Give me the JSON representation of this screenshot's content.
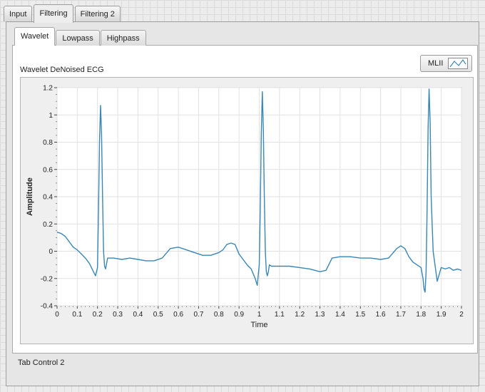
{
  "outer_tabs": [
    "Input",
    "Filtering",
    "Filtering 2"
  ],
  "active_outer_tab": "Filtering",
  "inner_tabs": [
    "Wavelet",
    "Lowpass",
    "Highpass"
  ],
  "active_inner_tab": "Wavelet",
  "graph": {
    "label": "Wavelet DeNoised ECG",
    "legend_label": "MLII",
    "line_color": "#3a86b4"
  },
  "tab_control_label": "Tab Control 2",
  "chart_data": {
    "type": "line",
    "xlabel": "Time",
    "ylabel": "Amplitude",
    "xlim": [
      0,
      2
    ],
    "ylim": [
      -0.4,
      1.2
    ],
    "xticks": [
      "0",
      "0.1",
      "0.2",
      "0.3",
      "0.4",
      "0.5",
      "0.6",
      "0.7",
      "0.8",
      "0.9",
      "1",
      "1.1",
      "1.2",
      "1.3",
      "1.4",
      "1.5",
      "1.6",
      "1.7",
      "1.8",
      "1.9",
      "2"
    ],
    "yticks": [
      "-0.4",
      "-0.2",
      "0",
      "0.2",
      "0.4",
      "0.6",
      "0.8",
      "1",
      "1.2"
    ],
    "grid": true,
    "series": [
      {
        "name": "MLII",
        "x": [
          0,
          0.02,
          0.04,
          0.06,
          0.08,
          0.1,
          0.12,
          0.14,
          0.16,
          0.18,
          0.19,
          0.2,
          0.205,
          0.21,
          0.215,
          0.22,
          0.225,
          0.23,
          0.235,
          0.24,
          0.25,
          0.28,
          0.32,
          0.36,
          0.4,
          0.44,
          0.48,
          0.52,
          0.56,
          0.6,
          0.64,
          0.68,
          0.72,
          0.76,
          0.8,
          0.82,
          0.84,
          0.86,
          0.88,
          0.9,
          0.92,
          0.94,
          0.96,
          0.98,
          0.99,
          1.0,
          1.005,
          1.01,
          1.015,
          1.02,
          1.025,
          1.03,
          1.035,
          1.04,
          1.045,
          1.05,
          1.06,
          1.1,
          1.15,
          1.2,
          1.25,
          1.3,
          1.33,
          1.36,
          1.4,
          1.45,
          1.5,
          1.55,
          1.6,
          1.64,
          1.68,
          1.7,
          1.72,
          1.74,
          1.76,
          1.78,
          1.8,
          1.81,
          1.815,
          1.82,
          1.825,
          1.83,
          1.835,
          1.84,
          1.845,
          1.85,
          1.86,
          1.88,
          1.9,
          1.92,
          1.94,
          1.96,
          1.98,
          2.0
        ],
        "y": [
          0.14,
          0.13,
          0.11,
          0.07,
          0.03,
          0.01,
          -0.02,
          -0.05,
          -0.09,
          -0.15,
          -0.18,
          -0.12,
          0.3,
          0.8,
          1.07,
          0.85,
          0.4,
          0.0,
          -0.11,
          -0.13,
          -0.05,
          -0.05,
          -0.06,
          -0.05,
          -0.06,
          -0.07,
          -0.07,
          -0.05,
          0.02,
          0.03,
          0.01,
          -0.01,
          -0.03,
          -0.03,
          -0.01,
          0.01,
          0.05,
          0.06,
          0.05,
          -0.02,
          -0.06,
          -0.1,
          -0.13,
          -0.2,
          -0.25,
          -0.1,
          0.3,
          0.85,
          1.17,
          0.9,
          0.4,
          0.0,
          -0.15,
          -0.18,
          -0.15,
          -0.1,
          -0.11,
          -0.11,
          -0.11,
          -0.12,
          -0.13,
          -0.15,
          -0.14,
          -0.05,
          -0.04,
          -0.04,
          -0.05,
          -0.05,
          -0.06,
          -0.05,
          0.02,
          0.04,
          0.02,
          -0.04,
          -0.08,
          -0.1,
          -0.12,
          -0.2,
          -0.28,
          -0.3,
          -0.15,
          0.3,
          0.9,
          1.19,
          0.95,
          0.4,
          0.0,
          -0.22,
          -0.12,
          -0.13,
          -0.12,
          -0.14,
          -0.13,
          -0.14
        ]
      }
    ]
  }
}
